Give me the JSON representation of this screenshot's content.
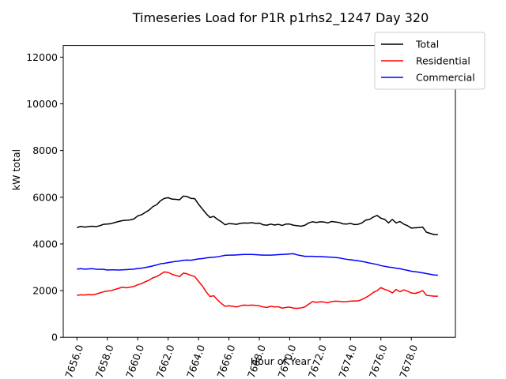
{
  "chart_data": {
    "type": "line",
    "title": "Timeseries Load for P1R p1rhs2_1247  Day 320",
    "xlabel": "Hour of Year",
    "ylabel": "kW total",
    "xlim": [
      7655.1,
      7680.9
    ],
    "ylim": [
      0,
      12500
    ],
    "x_ticks": [
      7656.0,
      7658.0,
      7660.0,
      7662.0,
      7664.0,
      7666.0,
      7668.0,
      7670.0,
      7672.0,
      7674.0,
      7676.0,
      7678.0
    ],
    "x_tick_labels": [
      "7656.0",
      "7658.0",
      "7660.0",
      "7662.0",
      "7664.0",
      "7666.0",
      "7668.0",
      "7670.0",
      "7672.0",
      "7674.0",
      "7676.0",
      "7678.0"
    ],
    "y_ticks": [
      0,
      2000,
      4000,
      6000,
      8000,
      10000,
      12000
    ],
    "y_tick_labels": [
      "0",
      "2000",
      "4000",
      "6000",
      "8000",
      "10000",
      "12000"
    ],
    "legend_position": "top-right",
    "x": [
      7656.0,
      7656.25,
      7656.5,
      7656.75,
      7657.0,
      7657.25,
      7657.5,
      7657.75,
      7658.0,
      7658.25,
      7658.5,
      7658.75,
      7659.0,
      7659.25,
      7659.5,
      7659.75,
      7660.0,
      7660.25,
      7660.5,
      7660.75,
      7661.0,
      7661.25,
      7661.5,
      7661.75,
      7662.0,
      7662.25,
      7662.5,
      7662.75,
      7663.0,
      7663.25,
      7663.5,
      7663.75,
      7664.0,
      7664.25,
      7664.5,
      7664.75,
      7665.0,
      7665.25,
      7665.5,
      7665.75,
      7666.0,
      7666.25,
      7666.5,
      7666.75,
      7667.0,
      7667.25,
      7667.5,
      7667.75,
      7668.0,
      7668.25,
      7668.5,
      7668.75,
      7669.0,
      7669.25,
      7669.5,
      7669.75,
      7670.0,
      7670.25,
      7670.5,
      7670.75,
      7671.0,
      7671.25,
      7671.5,
      7671.75,
      7672.0,
      7672.25,
      7672.5,
      7672.75,
      7673.0,
      7673.25,
      7673.5,
      7673.75,
      7674.0,
      7674.25,
      7674.5,
      7674.75,
      7675.0,
      7675.25,
      7675.5,
      7675.75,
      7676.0,
      7676.25,
      7676.5,
      7676.75,
      7677.0,
      7677.25,
      7677.5,
      7677.75,
      7678.0,
      7678.25,
      7678.5,
      7678.75,
      7679.0,
      7679.25,
      7679.5,
      7679.75
    ],
    "series": [
      {
        "name": "Total",
        "color": "#000000",
        "values": [
          4700,
          4750,
          4720,
          4740,
          4760,
          4740,
          4780,
          4840,
          4850,
          4870,
          4920,
          4960,
          5000,
          5010,
          5030,
          5070,
          5200,
          5250,
          5350,
          5450,
          5600,
          5680,
          5850,
          5950,
          5980,
          5920,
          5910,
          5890,
          6050,
          6030,
          5950,
          5940,
          5700,
          5500,
          5300,
          5130,
          5180,
          5050,
          4950,
          4820,
          4870,
          4860,
          4840,
          4880,
          4900,
          4890,
          4910,
          4880,
          4890,
          4820,
          4800,
          4850,
          4810,
          4840,
          4790,
          4850,
          4850,
          4800,
          4780,
          4760,
          4800,
          4900,
          4950,
          4920,
          4950,
          4940,
          4900,
          4960,
          4940,
          4920,
          4860,
          4850,
          4880,
          4830,
          4840,
          4900,
          5020,
          5050,
          5150,
          5220,
          5100,
          5050,
          4900,
          5050,
          4900,
          4960,
          4850,
          4780,
          4680,
          4690,
          4700,
          4720,
          4500,
          4450,
          4400,
          4400
        ]
      },
      {
        "name": "Residential",
        "color": "#ff0000",
        "values": [
          1800,
          1820,
          1810,
          1830,
          1820,
          1850,
          1900,
          1950,
          1980,
          2000,
          2050,
          2100,
          2150,
          2120,
          2150,
          2180,
          2250,
          2300,
          2380,
          2450,
          2550,
          2600,
          2700,
          2800,
          2780,
          2700,
          2650,
          2600,
          2750,
          2720,
          2650,
          2600,
          2400,
          2200,
          1950,
          1750,
          1780,
          1600,
          1450,
          1330,
          1350,
          1330,
          1300,
          1350,
          1380,
          1370,
          1380,
          1370,
          1350,
          1300,
          1280,
          1330,
          1300,
          1310,
          1250,
          1280,
          1290,
          1250,
          1240,
          1260,
          1300,
          1420,
          1530,
          1500,
          1520,
          1510,
          1480,
          1530,
          1550,
          1540,
          1520,
          1530,
          1550,
          1560,
          1560,
          1620,
          1700,
          1800,
          1920,
          2000,
          2130,
          2050,
          2000,
          1900,
          2050,
          1950,
          2030,
          1980,
          1900,
          1880,
          1930,
          2000,
          1800,
          1780,
          1760,
          1760
        ]
      },
      {
        "name": "Commercial",
        "color": "#0000ff",
        "values": [
          2920,
          2940,
          2920,
          2930,
          2940,
          2920,
          2910,
          2910,
          2880,
          2890,
          2890,
          2880,
          2890,
          2900,
          2910,
          2920,
          2950,
          2960,
          2990,
          3020,
          3060,
          3100,
          3150,
          3170,
          3200,
          3230,
          3250,
          3270,
          3300,
          3310,
          3300,
          3330,
          3360,
          3370,
          3400,
          3420,
          3430,
          3450,
          3480,
          3510,
          3520,
          3520,
          3530,
          3540,
          3550,
          3550,
          3550,
          3540,
          3530,
          3520,
          3520,
          3520,
          3530,
          3540,
          3550,
          3560,
          3570,
          3580,
          3530,
          3500,
          3470,
          3470,
          3470,
          3460,
          3460,
          3450,
          3440,
          3430,
          3420,
          3400,
          3370,
          3340,
          3320,
          3300,
          3280,
          3250,
          3220,
          3180,
          3150,
          3120,
          3070,
          3040,
          3010,
          2990,
          2960,
          2940,
          2900,
          2870,
          2830,
          2810,
          2790,
          2760,
          2730,
          2700,
          2670,
          2660
        ]
      }
    ]
  }
}
